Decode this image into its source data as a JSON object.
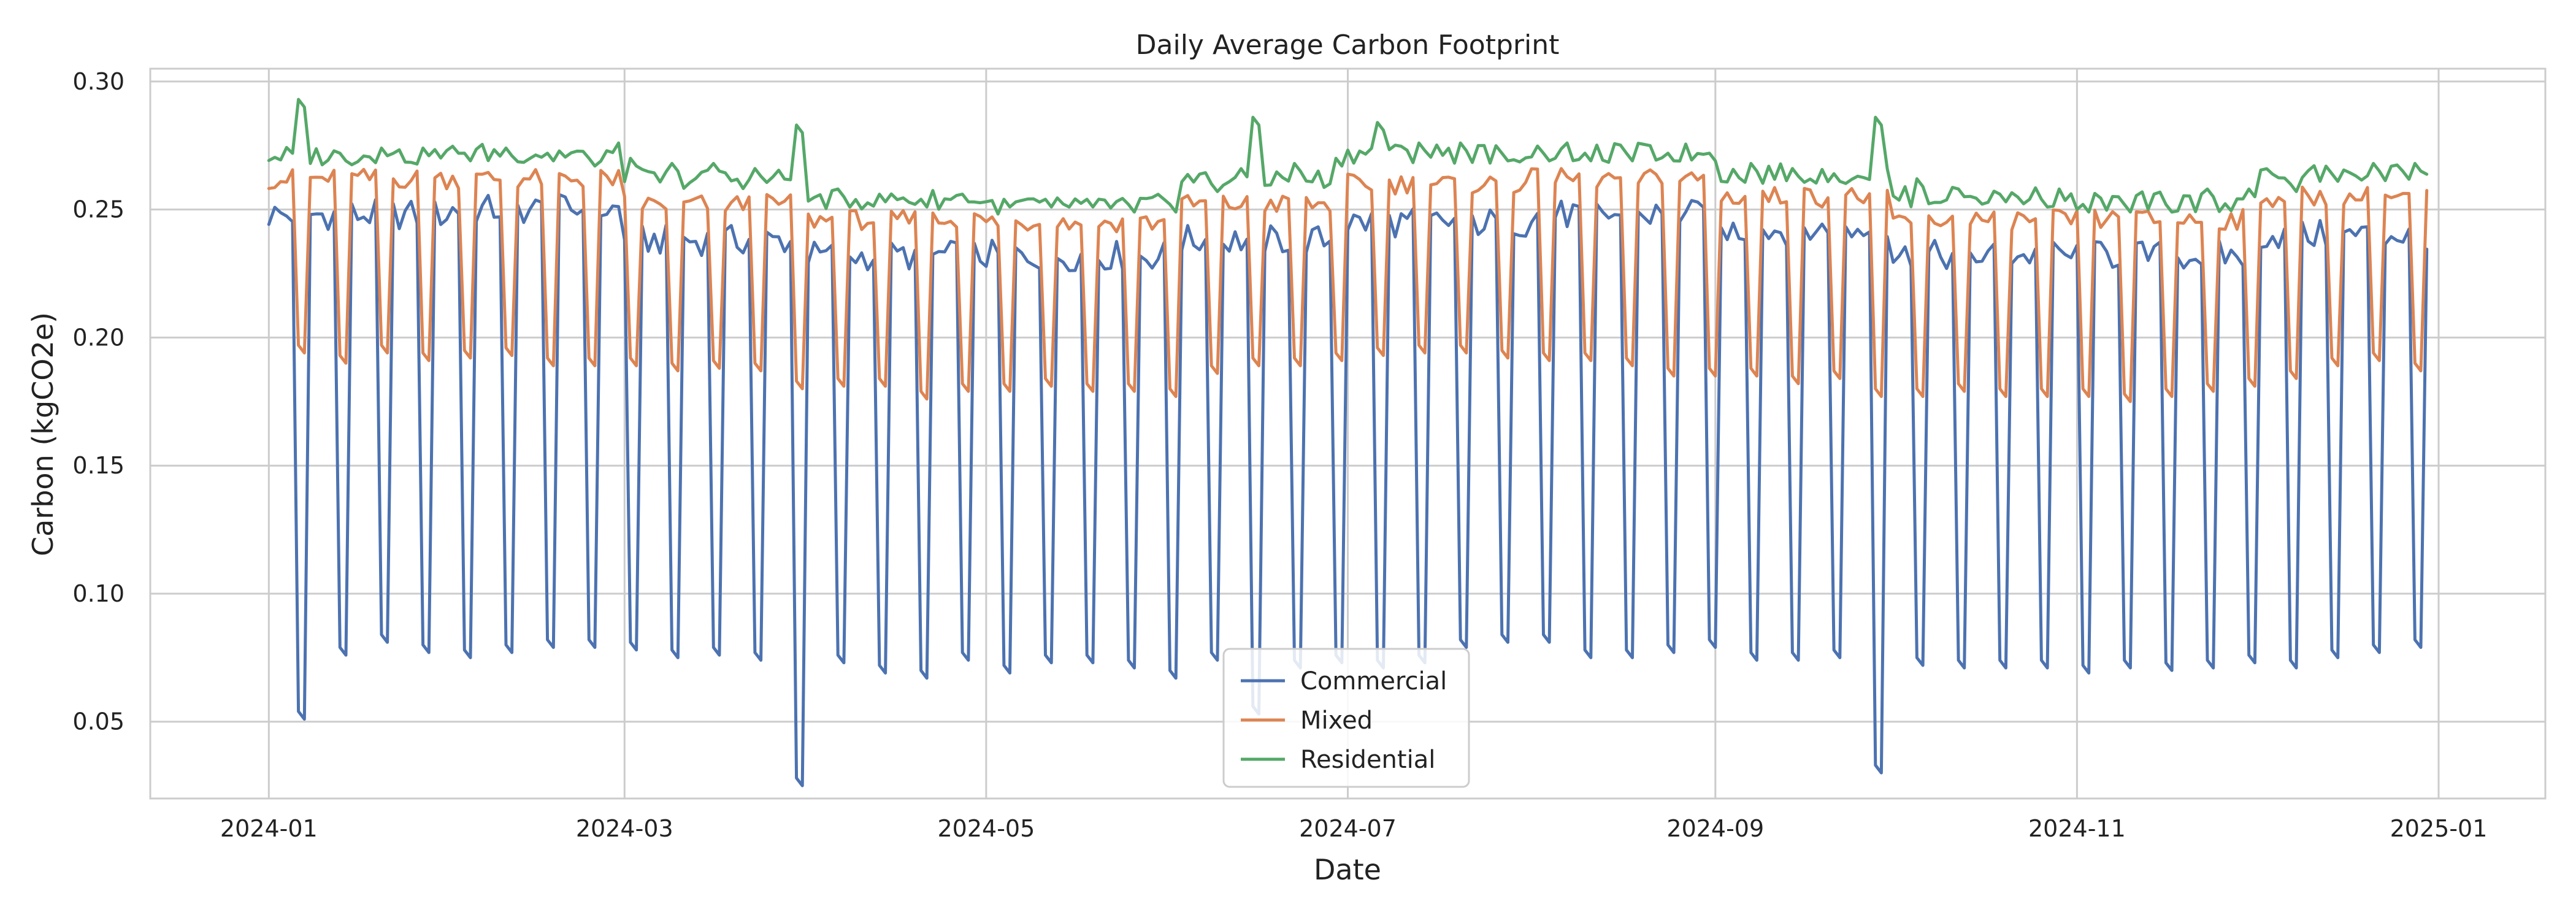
{
  "chart_data": {
    "type": "line",
    "title": "Daily Average Carbon Footprint",
    "xlabel": "Date",
    "ylabel": "Carbon (kgCO2e)",
    "x_start": "2024-01-01",
    "x_end": "2024-12-30",
    "xlim": [
      "2023-12-12",
      "2025-01-19"
    ],
    "ylim": [
      0.02,
      0.305
    ],
    "x_ticks": [
      {
        "date": "2024-01-01",
        "label": "2024-01"
      },
      {
        "date": "2024-03-01",
        "label": "2024-03"
      },
      {
        "date": "2024-05-01",
        "label": "2024-05"
      },
      {
        "date": "2024-07-01",
        "label": "2024-07"
      },
      {
        "date": "2024-09-01",
        "label": "2024-09"
      },
      {
        "date": "2024-11-01",
        "label": "2024-11"
      },
      {
        "date": "2025-01-01",
        "label": "2025-01"
      }
    ],
    "y_ticks": [
      {
        "value": 0.05,
        "label": "0.05"
      },
      {
        "value": 0.1,
        "label": "0.10"
      },
      {
        "value": 0.15,
        "label": "0.15"
      },
      {
        "value": 0.2,
        "label": "0.20"
      },
      {
        "value": 0.25,
        "label": "0.25"
      },
      {
        "value": 0.3,
        "label": "0.30"
      }
    ],
    "grid": true,
    "legend_position": "bottom-center",
    "series": [
      {
        "name": "Commercial",
        "color": "#4c72b0",
        "weekday_baseline": [
          0.248,
          0.25,
          0.238,
          0.232,
          0.232,
          0.238,
          0.245,
          0.248,
          0.242,
          0.232,
          0.232,
          0.24
        ],
        "weekend_values": [
          0.052,
          0.077,
          0.082,
          0.078,
          0.076,
          0.078,
          0.08,
          0.08,
          0.079,
          0.076,
          0.077,
          0.075,
          0.026,
          0.074,
          0.07,
          0.068,
          0.075,
          0.07,
          0.074,
          0.074,
          0.072,
          0.068,
          0.075,
          0.054,
          0.072,
          0.074,
          0.072,
          0.074,
          0.08,
          0.082,
          0.082,
          0.076,
          0.076,
          0.078,
          0.08,
          0.075,
          0.075,
          0.076,
          0.031,
          0.073,
          0.072,
          0.072,
          0.072,
          0.07,
          0.072,
          0.071,
          0.072,
          0.074,
          0.072,
          0.076,
          0.078,
          0.08,
          0.049,
          0.074
        ]
      },
      {
        "name": "Mixed",
        "color": "#dd8452",
        "weekday_baseline": [
          0.262,
          0.262,
          0.252,
          0.246,
          0.245,
          0.252,
          0.26,
          0.262,
          0.255,
          0.246,
          0.246,
          0.255
        ],
        "weekend_values": [
          0.195,
          0.191,
          0.195,
          0.192,
          0.193,
          0.194,
          0.19,
          0.19,
          0.19,
          0.188,
          0.189,
          0.188,
          0.181,
          0.182,
          0.182,
          0.177,
          0.18,
          0.18,
          0.182,
          0.18,
          0.18,
          0.178,
          0.187,
          0.19,
          0.19,
          0.192,
          0.194,
          0.195,
          0.195,
          0.193,
          0.192,
          0.192,
          0.19,
          0.186,
          0.186,
          0.186,
          0.183,
          0.185,
          0.178,
          0.178,
          0.18,
          0.178,
          0.178,
          0.178,
          0.176,
          0.178,
          0.18,
          0.182,
          0.185,
          0.19,
          0.192,
          0.188,
          0.188,
          0.188
        ]
      },
      {
        "name": "Residential",
        "color": "#55a868",
        "weekday_baseline": [
          0.271,
          0.272,
          0.262,
          0.254,
          0.252,
          0.262,
          0.272,
          0.272,
          0.264,
          0.255,
          0.253,
          0.264
        ],
        "weekend_values": [
          0.291,
          0.27,
          0.272,
          0.272,
          0.27,
          0.272,
          0.27,
          0.268,
          0.268,
          0.266,
          0.266,
          0.264,
          0.281,
          0.256,
          0.254,
          0.252,
          0.254,
          0.252,
          0.252,
          0.252,
          0.25,
          0.25,
          0.258,
          0.284,
          0.266,
          0.268,
          0.282,
          0.274,
          0.274,
          0.27,
          0.27,
          0.27,
          0.27,
          0.27,
          0.27,
          0.266,
          0.264,
          0.262,
          0.284,
          0.26,
          0.256,
          0.254,
          0.252,
          0.25,
          0.25,
          0.25,
          0.256,
          0.256,
          0.258,
          0.262,
          0.266,
          0.266,
          0.289,
          0.268
        ]
      }
    ]
  }
}
